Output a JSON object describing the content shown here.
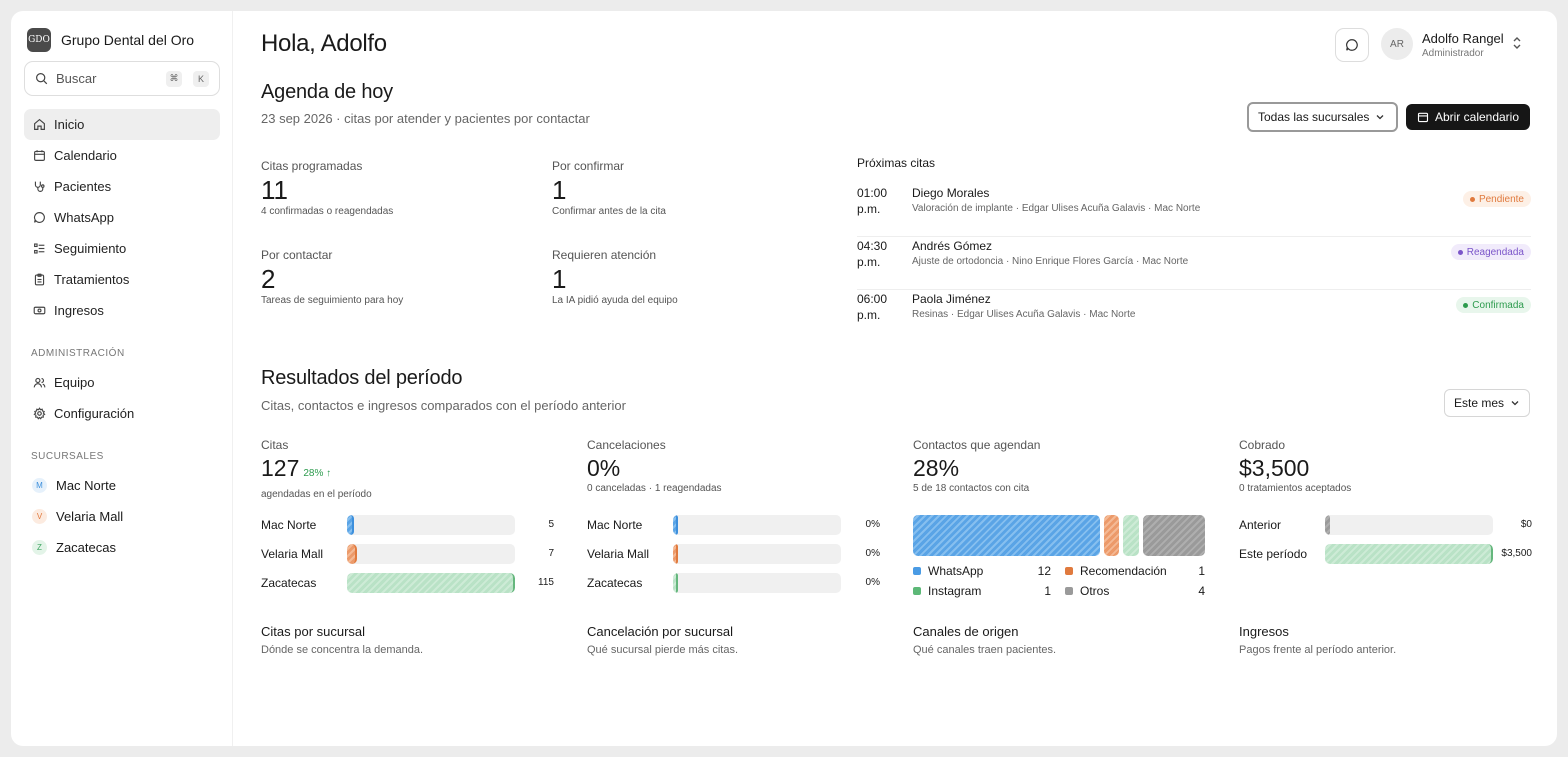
{
  "sidebar": {
    "brand": {
      "logo_text": "GDO",
      "name": "Grupo Dental del Oro"
    },
    "search": {
      "label": "Buscar",
      "kbd1": "⌘",
      "kbd2": "K"
    },
    "nav": [
      {
        "label": "Inicio",
        "icon": "home-icon"
      },
      {
        "label": "Calendario",
        "icon": "calendar-icon"
      },
      {
        "label": "Pacientes",
        "icon": "stethoscope-icon"
      },
      {
        "label": "WhatsApp",
        "icon": "chat-bubble-icon"
      },
      {
        "label": "Seguimiento",
        "icon": "checklist-icon"
      },
      {
        "label": "Tratamientos",
        "icon": "clipboard-icon"
      },
      {
        "label": "Ingresos",
        "icon": "banknote-icon"
      }
    ],
    "admin_heading": "ADMINISTRACIÓN",
    "admin": [
      {
        "label": "Equipo",
        "icon": "users-icon"
      },
      {
        "label": "Configuración",
        "icon": "gear-icon"
      }
    ],
    "branches_heading": "SUCURSALES",
    "branches": [
      {
        "initial": "M",
        "label": "Mac Norte",
        "color": "#3d8fdc",
        "bg": "#e6f1fb"
      },
      {
        "initial": "V",
        "label": "Velaria Mall",
        "color": "#e07a3e",
        "bg": "#fcebe0"
      },
      {
        "initial": "Z",
        "label": "Zacatecas",
        "color": "#3fa562",
        "bg": "#e3f4e8"
      }
    ]
  },
  "header": {
    "greeting": "Hola, Adolfo",
    "user": {
      "initials": "AR",
      "name": "Adolfo Rangel",
      "role": "Administrador"
    }
  },
  "agenda": {
    "title": "Agenda de hoy",
    "subtitle": "23 sep 2026 · citas por atender y pacientes por contactar",
    "branch_select": "Todas las sucursales",
    "calendar_button": "Abrir calendario",
    "stats": [
      {
        "label": "Citas programadas",
        "value": "11",
        "note": "4 confirmadas o reagendadas"
      },
      {
        "label": "Por confirmar",
        "value": "1",
        "note": "Confirmar antes de la cita"
      },
      {
        "label": "Por contactar",
        "value": "2",
        "note": "Tareas de seguimiento para hoy"
      },
      {
        "label": "Requieren atención",
        "value": "1",
        "note": "La IA pidió ayuda del equipo"
      }
    ],
    "upcoming_title": "Próximas citas",
    "upcoming": [
      {
        "time": "01:00 p.m.",
        "name": "Diego Morales",
        "detail": "Valoración de implante · Edgar Ulises Acuña Galavis · Mac Norte",
        "status": "Pendiente",
        "status_color": "#e07a3e",
        "status_bg": "#fdf0e6"
      },
      {
        "time": "04:30 p.m.",
        "name": "Andrés Gómez",
        "detail": "Ajuste de ortodoncia · Nino Enrique Flores García · Mac Norte",
        "status": "Reagendada",
        "status_color": "#7b55c9",
        "status_bg": "#f1ebfb"
      },
      {
        "time": "06:00 p.m.",
        "name": "Paola Jiménez",
        "detail": "Resinas · Edgar Ulises Acuña Galavis · Mac Norte",
        "status": "Confirmada",
        "status_color": "#2d9b4e",
        "status_bg": "#e8f6ec"
      }
    ]
  },
  "results": {
    "title": "Resultados del período",
    "subtitle": "Citas, contactos e ingresos comparados con el período anterior",
    "period_select": "Este mes",
    "citas": {
      "label": "Citas",
      "value": "127",
      "delta": "28% ↑",
      "note": "agendadas en el período",
      "rows": [
        {
          "name": "Mac Norte",
          "value": 5,
          "display": "5",
          "fill": "fill-blue"
        },
        {
          "name": "Velaria Mall",
          "value": 7,
          "display": "7",
          "fill": "fill-orange"
        },
        {
          "name": "Zacatecas",
          "value": 115,
          "display": "115",
          "fill": "fill-green"
        }
      ],
      "footer_title": "Citas por sucursal",
      "footer_sub": "Dónde se concentra la demanda."
    },
    "cancelaciones": {
      "label": "Cancelaciones",
      "value": "0%",
      "note": "0 canceladas · 1 reagendadas",
      "rows": [
        {
          "name": "Mac Norte",
          "display": "0%",
          "fill": "fill-blue"
        },
        {
          "name": "Velaria Mall",
          "display": "0%",
          "fill": "fill-orange"
        },
        {
          "name": "Zacatecas",
          "display": "0%",
          "fill": "fill-green"
        }
      ],
      "footer_title": "Cancelación por sucursal",
      "footer_sub": "Qué sucursal pierde más citas."
    },
    "contactos": {
      "label": "Contactos que agendan",
      "value": "28%",
      "note": "5 de 18 contactos con cita",
      "channels": [
        {
          "name": "WhatsApp",
          "value": 12,
          "color": "#4a9be4"
        },
        {
          "name": "Recomendación",
          "value": 1,
          "color": "#e07a3e"
        },
        {
          "name": "Instagram",
          "value": 1,
          "color": "#5cb877"
        },
        {
          "name": "Otros",
          "value": 4,
          "color": "#9a9a9a"
        }
      ],
      "footer_title": "Canales de origen",
      "footer_sub": "Qué canales traen pacientes."
    },
    "cobrado": {
      "label": "Cobrado",
      "value": "$3,500",
      "note": "0 tratamientos aceptados",
      "rows": [
        {
          "name": "Anterior",
          "value": 0,
          "display": "$0",
          "fill": "fill-gray"
        },
        {
          "name": "Este período",
          "value": 3500,
          "display": "$3,500",
          "fill": "fill-green"
        }
      ],
      "footer_title": "Ingresos",
      "footer_sub": "Pagos frente al período anterior."
    }
  }
}
